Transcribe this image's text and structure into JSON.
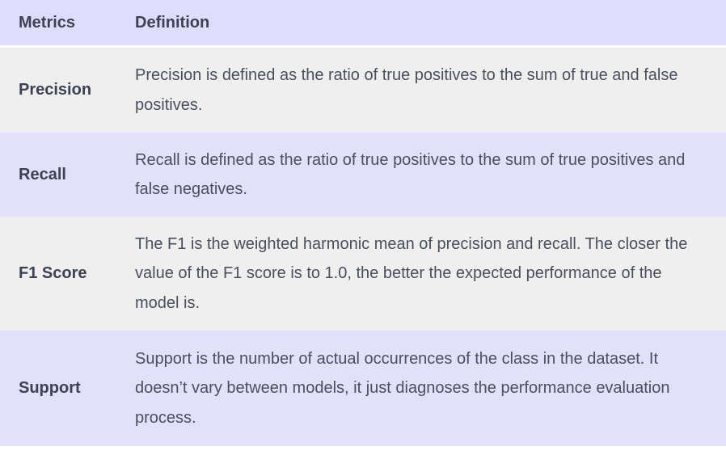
{
  "header": {
    "metrics_label": "Metrics",
    "definition_label": "Definition"
  },
  "rows": [
    {
      "metric": "Precision",
      "definition": "Precision is defined as the ratio of true positives to the sum of true and false positives."
    },
    {
      "metric": "Recall",
      "definition": "Recall is defined as the ratio of true positives to the sum of true positives and false negatives."
    },
    {
      "metric": "F1 Score",
      "definition": "The F1 is the weighted harmonic mean of precision and recall. The closer the value of the F1 score is to 1.0, the better the expected performance of the model is."
    },
    {
      "metric": "Support",
      "definition": "Support is the number of actual occurrences of the class in the dataset. It doesn’t vary between models, it just diagnoses the performance evaluation process."
    }
  ],
  "colors": {
    "header_bg": "#e0dcfd",
    "row_light_bg": "#efeff0",
    "row_purple_bg": "#e3e0fc",
    "text": "#4a4f5c"
  }
}
